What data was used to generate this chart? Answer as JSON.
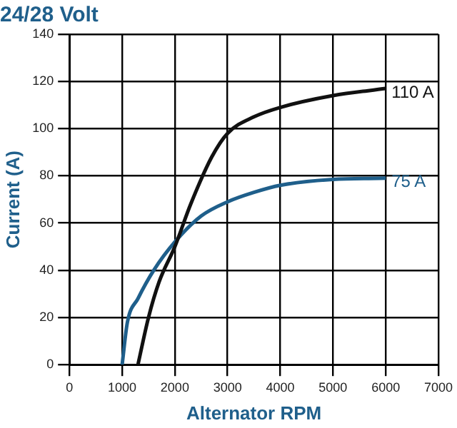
{
  "chart_data": {
    "type": "line",
    "title": "24/28 Volt",
    "xlabel": "Alternator RPM",
    "ylabel": "Current (A)",
    "series": [
      {
        "color": "#111111",
        "x": [
          1300,
          1500,
          1700,
          2000,
          2300,
          2700,
          3000,
          3500,
          4000,
          5000,
          6000
        ],
        "values": [
          0,
          20,
          35,
          50,
          68,
          88,
          98,
          105,
          109,
          114,
          117
        ]
      },
      {
        "color": "#1f5f8b",
        "x": [
          1000,
          1100,
          1300,
          1600,
          2000,
          2500,
          3000,
          3500,
          4000,
          5000,
          6000
        ],
        "values": [
          0,
          18,
          28,
          40,
          52,
          63,
          69,
          73,
          76,
          78.5,
          79
        ]
      }
    ],
    "annotations": [
      {
        "text": "110 A",
        "x": 6000,
        "y": 117
      },
      {
        "text": "75 A",
        "x": 6000,
        "y": 79
      }
    ],
    "xlim": [
      0,
      7000
    ],
    "xticks": [
      0,
      1000,
      2000,
      3000,
      4000,
      5000,
      6000,
      7000
    ],
    "ylim": [
      0,
      140
    ],
    "yticks": [
      0,
      20,
      40,
      60,
      80,
      100,
      120,
      140
    ],
    "grid": true,
    "legend": false,
    "marker": "none",
    "line_style": "solid"
  }
}
